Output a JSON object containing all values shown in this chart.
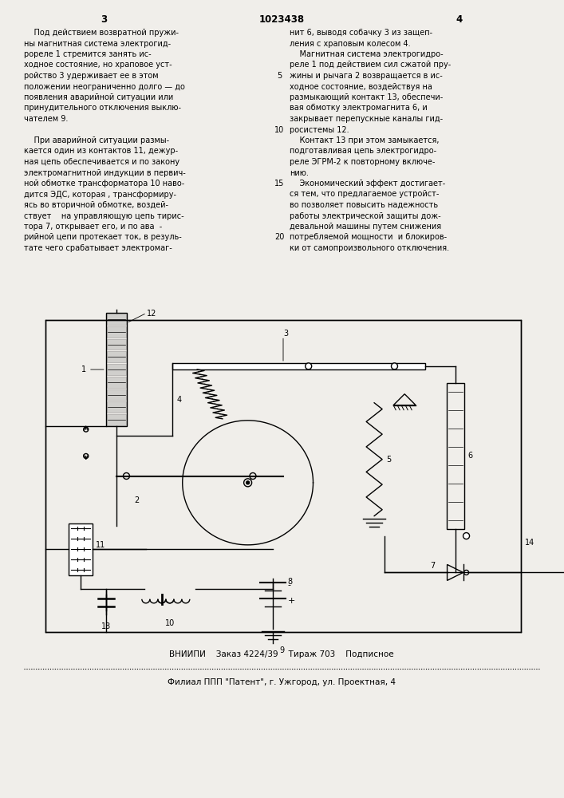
{
  "bg_color": "#f0eeea",
  "page_num_left": "3",
  "patent_number": "1023438",
  "page_num_right": "4",
  "col1_lines": [
    "    Под действием возвратной пружи-",
    "ны магнитная система электрогид-",
    "рореле 1 стремится занять ис-",
    "ходное состояние, но храповое уст-",
    "ройство 3 удерживает ее в этом",
    "положении неограниченно долго — до",
    "появления аварийной ситуации или",
    "принудительного отключения выклю-",
    "чателем 9.",
    "",
    "    При аварийной ситуации размы-",
    "кается один из контактов 11, дежур-",
    "ная цепь обеспечивается и по закону",
    "электромагнитной индукции в первич-",
    "ной обмотке трансформатора 10 наво-",
    "дится ЭДС, которая , трансформиру-",
    "ясь во вторичной обмотке, воздей-",
    "ствует    на управляющую цепь тирис-",
    "тора 7, открывает его, и по ава  -",
    "рийной цепи протекает ток, в резуль-",
    "тате чего срабатывает электромаг-"
  ],
  "col2_lines": [
    "нит 6, выводя собачку 3 из защеп-",
    "ления с храповым колесом 4.",
    "    Магнитная система электрогидро-",
    "реле 1 под действием сил сжатой пру-",
    "жины и рычага 2 возвращается в ис-",
    "ходное состояние, воздействуя на",
    "размыкающий контакт 13, обеспечи-",
    "вая обмотку электромагнита 6, и",
    "закрывает перепускные каналы гид-",
    "росистемы 12.",
    "    Контакт 13 при этом замыкается,",
    "подготавливая цепь электрогидро-",
    "реле ЭГРМ-2 к повторному включе-",
    "нию.",
    "    Экономический эффект достигает-",
    "ся тем, что предлагаемое устройст-",
    "во позволяет повысить надежность",
    "работы электрической защиты дож-",
    "девальной машины путем снижения",
    "потребляемой мощности  и блокиров-",
    "ки от самопроизвольного отключения."
  ],
  "footer_line1": "ВНИИПИ    Заказ 4224/39    Тираж 703    Подписное",
  "footer_line2": "Филиал ППП \"Патент\", г. Ужгород, ул. Проектная, 4"
}
